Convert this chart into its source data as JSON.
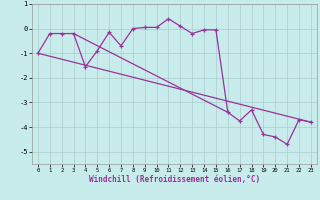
{
  "xlabel": "Windchill (Refroidissement éolien,°C)",
  "bg_color": "#c8ecec",
  "line_color": "#993399",
  "grid_color": "#aacccc",
  "hours": [
    0,
    1,
    2,
    3,
    4,
    5,
    6,
    7,
    8,
    9,
    10,
    11,
    12,
    13,
    14,
    15,
    16,
    17,
    18,
    19,
    20,
    21,
    22,
    23
  ],
  "windchill": [
    -1.0,
    -0.2,
    -0.2,
    -0.2,
    -1.55,
    -0.9,
    -0.15,
    -0.7,
    0.0,
    0.05,
    0.05,
    0.4,
    0.1,
    -0.2,
    -0.05,
    -0.05,
    -3.4,
    -3.75,
    -3.3,
    -4.3,
    -4.4,
    -4.7,
    -3.7,
    -3.8
  ],
  "trend1_x": [
    0,
    23
  ],
  "trend1_y": [
    -1.0,
    -3.8
  ],
  "trend2_x": [
    3,
    16
  ],
  "trend2_y": [
    -0.2,
    -3.4
  ],
  "ylim": [
    -5.5,
    1.0
  ],
  "xlim": [
    -0.5,
    23.5
  ],
  "yticks": [
    1,
    0,
    -1,
    -2,
    -3,
    -4,
    -5
  ],
  "xticks": [
    0,
    1,
    2,
    3,
    4,
    5,
    6,
    7,
    8,
    9,
    10,
    11,
    12,
    13,
    14,
    15,
    16,
    17,
    18,
    19,
    20,
    21,
    22,
    23
  ]
}
